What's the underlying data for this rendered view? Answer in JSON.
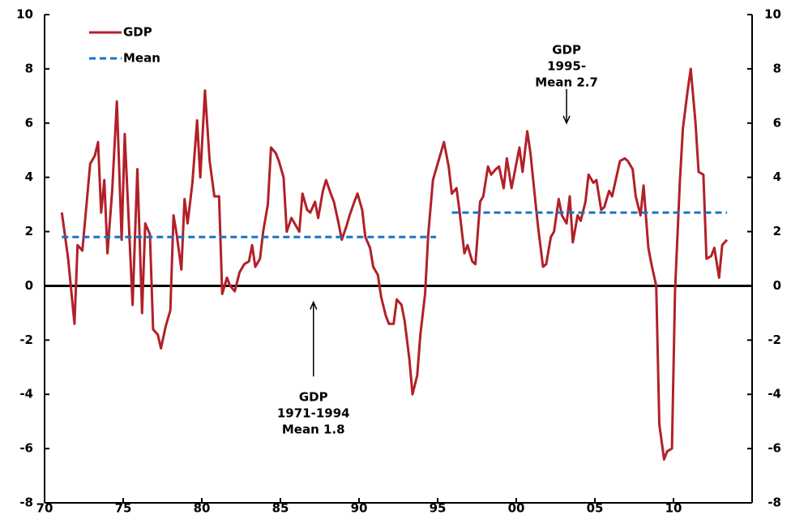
{
  "chart_data": {
    "type": "line",
    "xlim": [
      1970,
      2015
    ],
    "xticks": [
      {
        "value": 1970,
        "label": "70"
      },
      {
        "value": 1975,
        "label": "75"
      },
      {
        "value": 1980,
        "label": "80"
      },
      {
        "value": 1985,
        "label": "85"
      },
      {
        "value": 1990,
        "label": "90"
      },
      {
        "value": 1995,
        "label": "95"
      },
      {
        "value": 2000,
        "label": "00"
      },
      {
        "value": 2005,
        "label": "05"
      },
      {
        "value": 2010,
        "label": "10"
      }
    ],
    "ylim": [
      -8,
      10
    ],
    "yticks": [
      -8,
      -6,
      -4,
      -2,
      0,
      2,
      4,
      6,
      8,
      10
    ],
    "y2lim": [
      -8,
      10
    ],
    "y2ticks": [
      -8,
      -6,
      -4,
      -2,
      0,
      2,
      4,
      6,
      8,
      10
    ],
    "legend": "upper left",
    "series": [
      {
        "name": "GDP",
        "color": "#b22028",
        "x": [
          1971.1,
          1971.5,
          1971.9,
          1972.1,
          1972.4,
          1972.9,
          1973.2,
          1973.4,
          1973.6,
          1973.8,
          1974.0,
          1974.3,
          1974.6,
          1974.9,
          1975.1,
          1975.6,
          1975.9,
          1976.2,
          1976.4,
          1976.7,
          1976.9,
          1977.2,
          1977.4,
          1977.7,
          1978.0,
          1978.2,
          1978.4,
          1978.7,
          1978.9,
          1979.1,
          1979.4,
          1979.7,
          1979.9,
          1980.2,
          1980.5,
          1980.8,
          1981.1,
          1981.3,
          1981.6,
          1981.8,
          1982.1,
          1982.4,
          1982.7,
          1983.0,
          1983.2,
          1983.4,
          1983.7,
          1983.9,
          1984.2,
          1984.4,
          1984.7,
          1984.9,
          1985.2,
          1985.4,
          1985.7,
          1985.9,
          1986.2,
          1986.4,
          1986.7,
          1986.9,
          1987.2,
          1987.4,
          1987.7,
          1987.9,
          1988.2,
          1988.4,
          1988.7,
          1988.9,
          1989.2,
          1989.4,
          1989.7,
          1989.9,
          1990.2,
          1990.4,
          1990.7,
          1990.9,
          1991.2,
          1991.4,
          1991.7,
          1991.9,
          1992.2,
          1992.4,
          1992.7,
          1992.9,
          1993.2,
          1993.4,
          1993.7,
          1993.9,
          1994.2,
          1994.4,
          1994.7,
          1994.9,
          1995.2,
          1995.4,
          1995.7,
          1995.9,
          1996.2,
          1996.4,
          1996.7,
          1996.9,
          1997.2,
          1997.4,
          1997.7,
          1997.9,
          1998.2,
          1998.4,
          1998.7,
          1998.9,
          1999.2,
          1999.4,
          1999.7,
          1999.9,
          2000.2,
          2000.4,
          2000.7,
          2000.9,
          2001.2,
          2001.4,
          2001.7,
          2001.9,
          2002.2,
          2002.4,
          2002.7,
          2002.9,
          2003.2,
          2003.4,
          2003.6,
          2003.9,
          2004.1,
          2004.4,
          2004.6,
          2004.9,
          2005.1,
          2005.4,
          2005.6,
          2005.9,
          2006.1,
          2006.4,
          2006.6,
          2006.9,
          2007.1,
          2007.4,
          2007.6,
          2007.9,
          2008.1,
          2008.4,
          2008.6,
          2008.9,
          2009.1,
          2009.4,
          2009.6,
          2009.9,
          2010.1,
          2010.4,
          2010.6,
          2010.9,
          2011.1,
          2011.4,
          2011.6,
          2011.9,
          2012.1,
          2012.4,
          2012.6,
          2012.9,
          2013.1,
          2013.4
        ],
        "values": [
          2.7,
          1.0,
          -1.4,
          1.5,
          1.3,
          4.5,
          4.8,
          5.3,
          2.7,
          3.9,
          1.2,
          3.5,
          6.8,
          1.7,
          5.6,
          -0.7,
          4.3,
          -1.0,
          2.3,
          1.9,
          -1.6,
          -1.8,
          -2.3,
          -1.5,
          -0.9,
          2.6,
          1.9,
          0.6,
          3.2,
          2.3,
          3.8,
          6.1,
          4.0,
          7.2,
          4.6,
          3.3,
          3.3,
          -0.3,
          0.3,
          0.0,
          -0.2,
          0.5,
          0.8,
          0.9,
          1.5,
          0.7,
          1.0,
          2.0,
          3.0,
          5.1,
          4.9,
          4.6,
          4.0,
          2.0,
          2.5,
          2.3,
          2.0,
          3.4,
          2.8,
          2.7,
          3.1,
          2.5,
          3.5,
          3.9,
          3.4,
          3.1,
          2.3,
          1.7,
          2.2,
          2.6,
          3.1,
          3.4,
          2.8,
          1.8,
          1.4,
          0.7,
          0.4,
          -0.4,
          -1.1,
          -1.4,
          -1.4,
          -0.5,
          -0.7,
          -1.3,
          -2.7,
          -4.0,
          -3.3,
          -1.8,
          -0.3,
          1.9,
          3.9,
          4.3,
          4.9,
          5.3,
          4.4,
          3.4,
          3.6,
          2.7,
          1.2,
          1.5,
          0.9,
          0.8,
          3.1,
          3.3,
          4.4,
          4.1,
          4.3,
          4.4,
          3.6,
          4.7,
          3.6,
          4.2,
          5.1,
          4.2,
          5.7,
          4.9,
          3.2,
          2.1,
          0.7,
          0.8,
          1.8,
          2.0,
          3.2,
          2.6,
          2.3,
          3.3,
          1.6,
          2.6,
          2.4,
          3.1,
          4.1,
          3.8,
          3.9,
          2.8,
          2.9,
          3.5,
          3.3,
          4.1,
          4.6,
          4.7,
          4.6,
          4.3,
          3.3,
          2.6,
          3.7,
          1.4,
          0.8,
          0.0,
          -5.1,
          -6.4,
          -6.1,
          -6.0,
          -0.2,
          3.8,
          5.8,
          7.2,
          8.0,
          6.0,
          4.2,
          4.1,
          1.0,
          1.1,
          1.4,
          0.3,
          1.5,
          1.7
        ]
      },
      {
        "name": "Mean",
        "color": "#1a73c4",
        "x": [
          1971.1,
          1994.9,
          1995.0,
          1995.9,
          2013.4
        ],
        "values": [
          1.8,
          1.8,
          null,
          2.7,
          2.7
        ]
      }
    ],
    "annotations": [
      {
        "lines": [
          "GDP",
          "1995-",
          "Mean 2.7"
        ],
        "x": 2003.2,
        "y": 6.0
      },
      {
        "lines": [
          "GDP",
          "1971-1994",
          "Mean 1.8"
        ],
        "x": 1987.1,
        "y": -4.0
      }
    ]
  }
}
